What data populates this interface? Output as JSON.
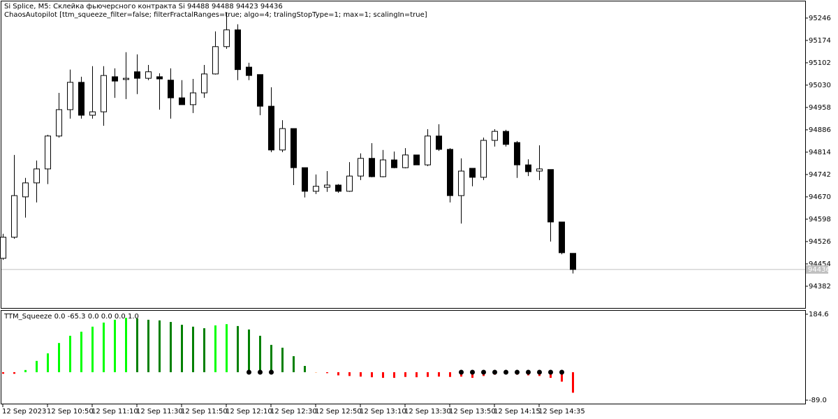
{
  "chart_data": [
    {
      "type": "candlestick",
      "title": "Si Splice, M5:  Склейка фьючерсного контракта Si  94488 94488 94423 94436",
      "subtitle": "ChaosAutopilot [ttm_squeeze_filter=false; filterFractalRanges=true; algo=4; tralingStopType=1; max=1; scalingIn=true]",
      "categories": [
        "12 Sep 2023",
        null,
        null,
        null,
        "12 Sep 10:50",
        null,
        null,
        null,
        "12 Sep 11:10",
        null,
        null,
        null,
        "12 Sep 11:30",
        null,
        null,
        null,
        "12 Sep 11:50",
        null,
        null,
        null,
        "12 Sep 12:10",
        null,
        null,
        null,
        "12 Sep 12:30",
        null,
        null,
        null,
        "12 Sep 12:50",
        null,
        null,
        null,
        "12 Sep 13:10",
        null,
        null,
        null,
        "12 Sep 13:30",
        null,
        null,
        null,
        "12 Sep 13:50",
        null,
        null,
        null,
        "12 Sep 14:15",
        null,
        null,
        null,
        "12 Sep 14:35",
        null,
        null,
        null
      ],
      "open": [
        94472,
        94540,
        94670,
        94715,
        94760,
        94866,
        94951,
        95039,
        94933,
        94944,
        95057,
        95048,
        95073,
        95052,
        95057,
        95046,
        94989,
        94967,
        95005,
        95066,
        95154,
        95208,
        95088,
        95064,
        94962,
        94821,
        94890,
        94764,
        94688,
        94701,
        94708,
        94688,
        94737,
        94794,
        94735,
        94789,
        94764,
        94805,
        94773,
        94866,
        94823,
        94674,
        94762,
        94733,
        94852,
        94881,
        94845,
        94773,
        94753,
        94758,
        94589,
        94488
      ],
      "high": [
        94551,
        94805,
        94731,
        94787,
        94870,
        95005,
        95080,
        95057,
        95091,
        95091,
        95084,
        95136,
        95129,
        95095,
        95068,
        95084,
        95046,
        95050,
        95095,
        95203,
        95264,
        95226,
        95102,
        95064,
        95023,
        94917,
        94890,
        94764,
        94742,
        94753,
        94711,
        94782,
        94810,
        94843,
        94821,
        94816,
        94827,
        94805,
        94888,
        94904,
        94827,
        94794,
        94762,
        94861,
        94888,
        94886,
        94850,
        94791,
        94836,
        94758,
        94589,
        94488
      ],
      "low": [
        94467,
        94535,
        94603,
        94652,
        94711,
        94861,
        94922,
        94922,
        94922,
        94899,
        94989,
        94985,
        95001,
        95046,
        94951,
        94922,
        94967,
        94940,
        94989,
        95064,
        95147,
        95046,
        95046,
        94933,
        94814,
        94814,
        94708,
        94668,
        94679,
        94686,
        94683,
        94686,
        94724,
        94733,
        94733,
        94762,
        94762,
        94773,
        94769,
        94818,
        94652,
        94584,
        94704,
        94724,
        94832,
        94832,
        94731,
        94737,
        94724,
        94526,
        94485,
        94423
      ],
      "close": [
        94540,
        94674,
        94715,
        94760,
        94866,
        94951,
        95039,
        94933,
        94944,
        95061,
        95043,
        95052,
        95052,
        95073,
        95050,
        94989,
        94967,
        95005,
        95066,
        95154,
        95208,
        95080,
        95061,
        94962,
        94821,
        94890,
        94764,
        94688,
        94704,
        94708,
        94688,
        94737,
        94794,
        94735,
        94789,
        94764,
        94805,
        94773,
        94866,
        94823,
        94674,
        94753,
        94733,
        94852,
        94881,
        94839,
        94773,
        94751,
        94760,
        94589,
        94490,
        94436
      ],
      "ylim": [
        94312,
        95302
      ],
      "yticks": [
        95246,
        95174,
        95102,
        95030,
        94958,
        94886,
        94814,
        94742,
        94670,
        94598,
        94526,
        94454,
        94382
      ],
      "last_price": 94436,
      "up_color": "#ffffff",
      "down_color": "#000000"
    },
    {
      "type": "histogram",
      "title": "TTM_Squeeze 0.0 -65.3 0.0 0.0 0.0 1.0",
      "series": [
        {
          "values": [
            -5,
            -5,
            7,
            36,
            60,
            93,
            116,
            129,
            145,
            158,
            167,
            173,
            171,
            167,
            165,
            160,
            151,
            145,
            140,
            149,
            153,
            147,
            136,
            116,
            87,
            78,
            51,
            20,
            0,
            -3,
            -10,
            -12,
            -14,
            -16,
            -18,
            -18,
            -15,
            -16,
            -15,
            -14,
            -15,
            -14,
            -18,
            -12,
            -8,
            -6,
            -8,
            -10,
            -12,
            -18,
            -30,
            -65.3
          ],
          "colors": [
            "#ff0000",
            "#ff0000",
            "#00ff00",
            "#00ff00",
            "#00ff00",
            "#00ff00",
            "#00ff00",
            "#00ff00",
            "#00ff00",
            "#00ff00",
            "#00ff00",
            "#00ff00",
            "#008000",
            "#008000",
            "#008000",
            "#008000",
            "#008000",
            "#008000",
            "#008000",
            "#00ff00",
            "#00ff00",
            "#008000",
            "#008000",
            "#008000",
            "#008000",
            "#008000",
            "#008000",
            "#008000",
            "#ffc8a0",
            "#ff0000",
            "#ff0000",
            "#ff0000",
            "#ff0000",
            "#ff0000",
            "#ff0000",
            "#ff0000",
            "#ff0000",
            "#ff0000",
            "#ff0000",
            "#ff0000",
            "#ff0000",
            "#ff0000",
            "#ff0000",
            "#ff0000",
            "#ff0000",
            "#ff0000",
            "#ff0000",
            "#ff0000",
            "#ff0000",
            "#ff0000",
            "#ff0000",
            "#ff0000"
          ]
        },
        {
          "marker": "dot",
          "color": "#000000",
          "values": [
            null,
            null,
            null,
            null,
            null,
            null,
            null,
            null,
            null,
            null,
            null,
            null,
            null,
            null,
            null,
            null,
            null,
            null,
            null,
            null,
            null,
            null,
            0,
            0,
            0,
            null,
            null,
            null,
            null,
            null,
            null,
            null,
            null,
            null,
            null,
            null,
            null,
            null,
            null,
            null,
            null,
            0,
            0,
            0,
            0,
            0,
            0,
            0,
            0,
            0,
            0,
            null
          ]
        }
      ],
      "ylim": [
        -102.3,
        197.9
      ],
      "yticks": [
        184.6,
        {
          "value": -89,
          "label": "-89.0"
        }
      ]
    }
  ]
}
